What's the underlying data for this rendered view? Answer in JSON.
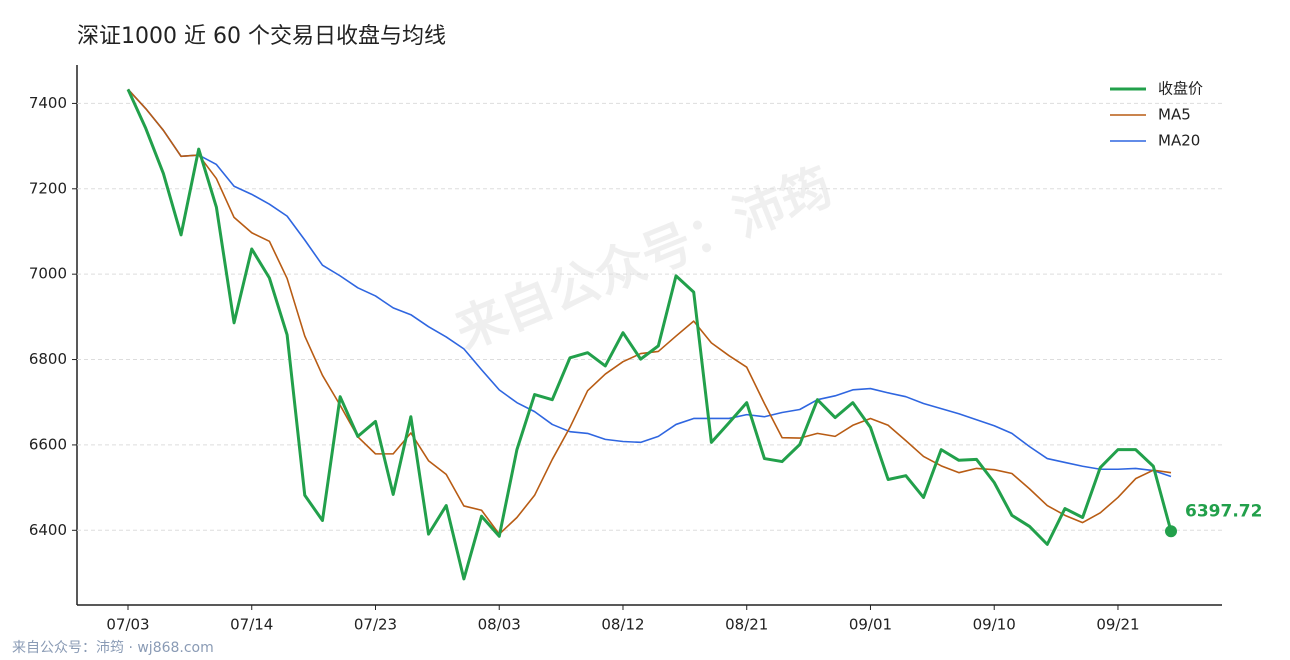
{
  "chart_data": {
    "type": "line",
    "title": "深证1000 近 60 个交易日收盘与均线",
    "watermark": "来自公众号：沛筠",
    "footer": "来自公众号：沛筠 · wj868.com",
    "categories": [
      "07/03",
      null,
      null,
      null,
      null,
      null,
      null,
      "07/14",
      null,
      null,
      null,
      null,
      null,
      null,
      "07/23",
      null,
      null,
      null,
      null,
      null,
      null,
      "08/03",
      null,
      null,
      null,
      null,
      null,
      null,
      "08/12",
      null,
      null,
      null,
      null,
      null,
      null,
      "08/21",
      null,
      null,
      null,
      null,
      null,
      null,
      "09/01",
      null,
      null,
      null,
      null,
      null,
      null,
      "09/10",
      null,
      null,
      null,
      null,
      null,
      null,
      "09/21",
      null,
      null,
      null
    ],
    "series": [
      {
        "name": "收盘价",
        "color": "#22a04b",
        "values": [
          7433,
          7342,
          7236,
          7092,
          7293,
          7157,
          6886,
          7059,
          6991,
          6858,
          6482,
          6423,
          6713,
          6620,
          6655,
          6484,
          6666,
          6391,
          6458,
          6286,
          6433,
          6386,
          6589,
          6718,
          6706,
          6804,
          6816,
          6785,
          6863,
          6801,
          6832,
          6996,
          6958,
          6606,
          6652,
          6699,
          6568,
          6561,
          6601,
          6706,
          6664,
          6699,
          6641,
          6519,
          6528,
          6477,
          6589,
          6564,
          6566,
          6512,
          6435,
          6409,
          6367,
          6451,
          6430,
          6547,
          6589,
          6589,
          6550,
          6397.72
        ]
      },
      {
        "name": "MA5",
        "color": "#b85c14",
        "values": [
          7433,
          7388,
          7337,
          7276,
          7279,
          7224,
          7133,
          7097,
          7077,
          6990,
          6855,
          6763,
          6693,
          6619,
          6579,
          6579,
          6628,
          6563,
          6531,
          6457,
          6447,
          6391,
          6430,
          6482,
          6566,
          6641,
          6727,
          6766,
          6795,
          6814,
          6819,
          6855,
          6890,
          6839,
          6809,
          6782,
          6697,
          6617,
          6616,
          6627,
          6620,
          6646,
          6662,
          6646,
          6610,
          6573,
          6551,
          6535,
          6545,
          6542,
          6533,
          6497,
          6458,
          6435,
          6418,
          6441,
          6477,
          6521,
          6541,
          6535
        ]
      },
      {
        "name": "MA20",
        "color": "#2f66e0",
        "values": [
          7433,
          7388,
          7337,
          7276,
          7279,
          7257,
          7206,
          7187,
          7164,
          7136,
          7080,
          7021,
          6996,
          6968,
          6949,
          6921,
          6905,
          6877,
          6853,
          6825,
          6776,
          6729,
          6699,
          6678,
          6648,
          6631,
          6627,
          6613,
          6608,
          6606,
          6620,
          6648,
          6662,
          6662,
          6662,
          6671,
          6666,
          6676,
          6683,
          6706,
          6715,
          6729,
          6732,
          6722,
          6713,
          6697,
          6685,
          6673,
          6659,
          6645,
          6627,
          6596,
          6568,
          6559,
          6550,
          6543,
          6543,
          6545,
          6540,
          6526
        ]
      }
    ],
    "ylim": [
      6225,
      7490
    ],
    "yticks": [
      6400,
      6600,
      6800,
      7000,
      7200,
      7400
    ],
    "grid": true,
    "legend": "upper right"
  }
}
